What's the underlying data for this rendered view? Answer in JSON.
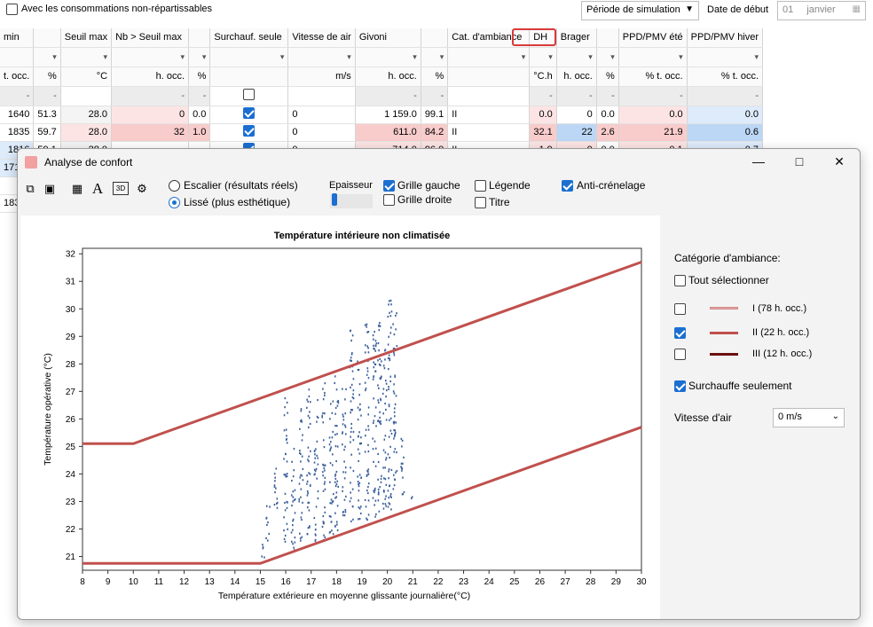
{
  "top": {
    "non_rep_label": "Avec les consommations non-répartissables",
    "periode_label": "Période de simulation",
    "date_label": "Date de début",
    "date_day": "01",
    "date_month": "janvier"
  },
  "table": {
    "headers": [
      "min",
      "",
      "Seuil max",
      "Nb > Seuil max",
      "",
      "Surchauf. seule",
      "Vitesse de air",
      "Givoni",
      "",
      "Cat. d'ambiance",
      "DH",
      "Brager",
      "",
      "PPD/PMV été",
      "PPD/PMV hiver"
    ],
    "units": [
      "t. occ.",
      "%",
      "°C",
      "h. occ.",
      "%",
      "",
      "m/s",
      "h. occ.",
      "%",
      "",
      "°C.h",
      "h. occ.",
      "%",
      "% t. occ.",
      "% t. occ."
    ],
    "dash_row": [
      "-",
      "-",
      "",
      "-",
      "-",
      "",
      "",
      "-",
      "-",
      "",
      "-",
      "-",
      "-",
      "-",
      "-"
    ],
    "rows": [
      [
        "1640",
        "51.3",
        "28.0",
        "0",
        "0.0",
        "",
        "0",
        "1 159.0",
        "99.1",
        "II",
        "0.0",
        "0",
        "0.0",
        "0.0",
        "0.0"
      ],
      [
        "1835",
        "59.7",
        "28.0",
        "32",
        "1.0",
        "",
        "0",
        "611.0",
        "84.2",
        "II",
        "32.1",
        "22",
        "2.6",
        "21.9",
        "0.6"
      ],
      [
        "1816",
        "59.1",
        "28.0",
        "",
        "",
        "",
        "0",
        "714.0",
        "96.0",
        "II",
        "1.9",
        "0",
        "0.0",
        "0.1",
        "0.7"
      ]
    ],
    "partial_rows": [
      "171",
      "",
      "183"
    ]
  },
  "dialog": {
    "title": "Analyse de confort",
    "radio_escalier": "Escalier (résultats réels)",
    "radio_lisse": "Lissé (plus esthétique)",
    "epaisseur": "Epaisseur",
    "grille_gauche": "Grille gauche",
    "grille_droite": "Grille droite",
    "legende": "Légende",
    "titre": "Titre",
    "anti_crenelage": "Anti-crénelage",
    "text_icon_glyph": "A",
    "three_d_label": "3D"
  },
  "side": {
    "cat_title": "Catégorie d'ambiance:",
    "select_all": "Tout sélectionner",
    "cats": [
      {
        "label": "I (78 h. occ.)",
        "color": "#eeaaaa",
        "checked": false
      },
      {
        "label": "II (22 h. occ.)",
        "color": "#c0504d",
        "checked": true
      },
      {
        "label": "III (12 h. occ.)",
        "color": "#6b0f0f",
        "checked": false
      }
    ],
    "surchauffe": "Surchauffe seulement",
    "vitesse_label": "Vitesse d'air",
    "vitesse_value": "0 m/s"
  },
  "chart_data": {
    "type": "scatter",
    "title": "Température intérieure non climatisée",
    "xlabel": "Température extérieure en moyenne glissante journalière(°C)",
    "ylabel": "Température opérative (°C)",
    "xlim": [
      8,
      30
    ],
    "ylim": [
      20.5,
      32.2
    ],
    "xticks": [
      8,
      9,
      10,
      11,
      12,
      13,
      14,
      15,
      16,
      17,
      18,
      19,
      20,
      21,
      22,
      23,
      24,
      25,
      26,
      27,
      28,
      29,
      30
    ],
    "yticks": [
      21,
      22,
      23,
      24,
      25,
      26,
      27,
      28,
      29,
      30,
      31,
      32
    ],
    "grid": false,
    "line_color": "#c0504d",
    "point_color": "#3b5f9a",
    "upper_line": {
      "x": [
        8,
        10,
        30
      ],
      "y": [
        25.1,
        25.1,
        31.7
      ]
    },
    "lower_line": {
      "x": [
        8,
        15,
        30
      ],
      "y": [
        20.75,
        20.75,
        25.7
      ]
    },
    "point_columns": [
      {
        "x": 15.1,
        "ymin": 20.9,
        "ymax": 21.8
      },
      {
        "x": 15.3,
        "ymin": 21.4,
        "ymax": 22.9
      },
      {
        "x": 15.6,
        "ymin": 22.6,
        "ymax": 24.7
      },
      {
        "x": 16.0,
        "ymin": 21.5,
        "ymax": 27.0
      },
      {
        "x": 16.3,
        "ymin": 21.2,
        "ymax": 25.3
      },
      {
        "x": 16.6,
        "ymin": 21.4,
        "ymax": 26.5
      },
      {
        "x": 16.9,
        "ymin": 21.3,
        "ymax": 27.3
      },
      {
        "x": 17.2,
        "ymin": 21.5,
        "ymax": 26.9
      },
      {
        "x": 17.5,
        "ymin": 21.6,
        "ymax": 27.5
      },
      {
        "x": 17.8,
        "ymin": 21.8,
        "ymax": 26.8
      },
      {
        "x": 18.0,
        "ymin": 21.7,
        "ymax": 27.6
      },
      {
        "x": 18.3,
        "ymin": 22.0,
        "ymax": 27.2
      },
      {
        "x": 18.6,
        "ymin": 22.1,
        "ymax": 29.4
      },
      {
        "x": 18.9,
        "ymin": 22.2,
        "ymax": 28.3
      },
      {
        "x": 19.2,
        "ymin": 22.3,
        "ymax": 29.5
      },
      {
        "x": 19.5,
        "ymin": 22.4,
        "ymax": 29.3
      },
      {
        "x": 19.7,
        "ymin": 22.5,
        "ymax": 29.6
      },
      {
        "x": 19.9,
        "ymin": 22.7,
        "ymax": 28.6
      },
      {
        "x": 20.1,
        "ymin": 22.7,
        "ymax": 30.4
      },
      {
        "x": 20.3,
        "ymin": 23.0,
        "ymax": 29.9
      },
      {
        "x": 20.6,
        "ymin": 23.0,
        "ymax": 25.3
      },
      {
        "x": 21.0,
        "ymin": 23.1,
        "ymax": 23.2
      }
    ]
  }
}
